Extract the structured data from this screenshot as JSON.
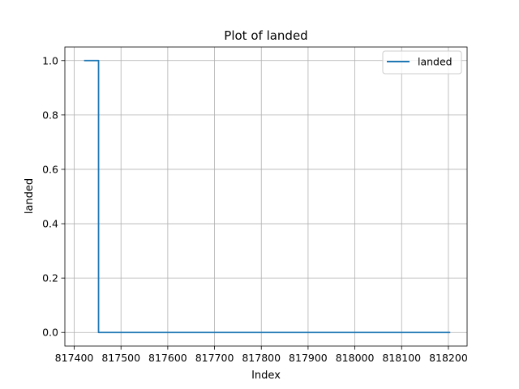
{
  "chart_data": {
    "type": "line",
    "title": "Plot of landed",
    "xlabel": "Index",
    "ylabel": "landed",
    "xlim": [
      817380,
      818240
    ],
    "ylim": [
      -0.05,
      1.05
    ],
    "xticks": [
      817400,
      817500,
      817600,
      817700,
      817800,
      817900,
      818000,
      818100,
      818200
    ],
    "yticks": [
      0.0,
      0.2,
      0.4,
      0.6,
      0.8,
      1.0
    ],
    "ytick_labels": [
      "0.0",
      "0.2",
      "0.4",
      "0.6",
      "0.8",
      "1.0"
    ],
    "grid": true,
    "legend_position": "top-right",
    "series": [
      {
        "name": "landed",
        "color": "#1f77b4",
        "x": [
          817421,
          817452,
          817452,
          818204
        ],
        "y": [
          1.0,
          1.0,
          0.0,
          0.0
        ]
      }
    ]
  }
}
